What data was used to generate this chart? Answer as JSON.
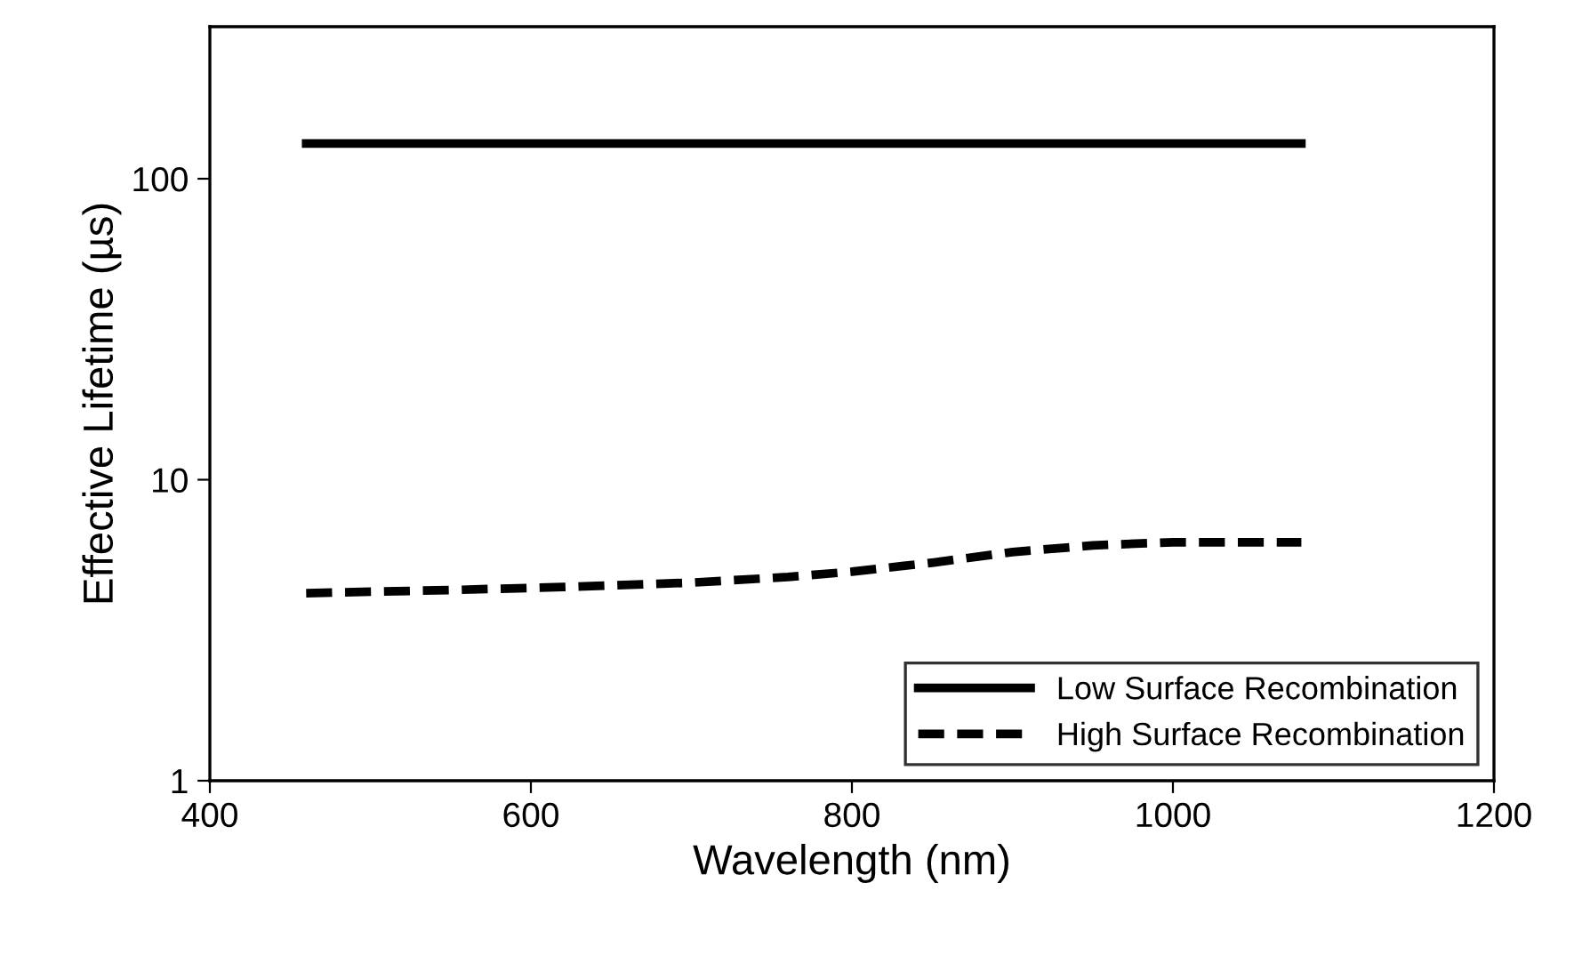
{
  "chart_data": {
    "type": "line",
    "xlabel": "Wavelength (nm)",
    "ylabel": "Effective Lifetime (µs)",
    "xlim": [
      400,
      1200
    ],
    "xticks": [
      400,
      600,
      800,
      1000,
      1200
    ],
    "ylim": [
      1,
      320
    ],
    "yticks": [
      1,
      10,
      100
    ],
    "log": "y",
    "grid": false,
    "legend": "bottom right",
    "marker": "none",
    "series": [
      {
        "name": "Low Surface Recombination",
        "color": "#000000",
        "line_style": "solid",
        "x": [
          460,
          1080
        ],
        "values": [
          131,
          131
        ]
      },
      {
        "name": "High Surface Recombination",
        "color": "#000000",
        "line_style": "dashed",
        "x": [
          460,
          550,
          620,
          700,
          760,
          800,
          850,
          900,
          950,
          1000,
          1080
        ],
        "values": [
          4.2,
          4.3,
          4.4,
          4.55,
          4.75,
          4.95,
          5.3,
          5.75,
          6.05,
          6.2,
          6.2
        ]
      }
    ]
  }
}
